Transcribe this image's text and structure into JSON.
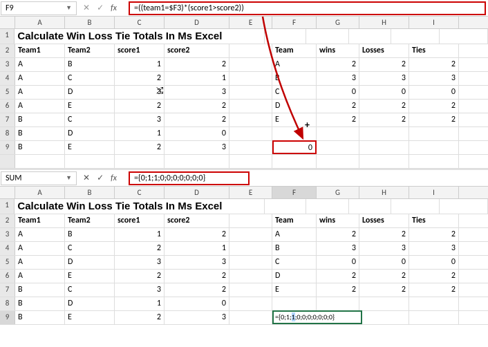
{
  "colors": {
    "highlight_border": "#c00",
    "edit_border": "#217346",
    "arrow": "#c00000"
  },
  "columns": {
    "widths": {
      "A": 72,
      "B": 72,
      "C": 72,
      "D": 94,
      "E": 62,
      "F": 64,
      "G": 62,
      "H": 72,
      "I": 72
    },
    "labels": [
      "A",
      "B",
      "C",
      "D",
      "E",
      "F",
      "G",
      "H",
      "I"
    ]
  },
  "panel1": {
    "name_box": "F9",
    "formula": "=((team1=$F3)*(score1>score2))",
    "title": "Calculate Win Loss Tie Totals In Ms Excel",
    "headers1": {
      "a": "Team1",
      "b": "Team2",
      "c": "score1",
      "d": "score2"
    },
    "headers2": {
      "f": "Team",
      "g": "wins",
      "h": "Losses",
      "i": "Ties"
    },
    "rows": [
      {
        "n": "3",
        "a": "A",
        "b": "B",
        "c": "1",
        "d": "2",
        "f": "A",
        "g": "2",
        "h": "2",
        "i": "2"
      },
      {
        "n": "4",
        "a": "A",
        "b": "C",
        "c": "2",
        "d": "1",
        "f": "B",
        "g": "3",
        "h": "3",
        "i": "3"
      },
      {
        "n": "5",
        "a": "A",
        "b": "D",
        "c": "3",
        "d": "3",
        "f": "C",
        "g": "0",
        "h": "0",
        "i": "0"
      },
      {
        "n": "6",
        "a": "A",
        "b": "E",
        "c": "2",
        "d": "2",
        "f": "D",
        "g": "2",
        "h": "2",
        "i": "2"
      },
      {
        "n": "7",
        "a": "B",
        "b": "C",
        "c": "3",
        "d": "2",
        "f": "E",
        "g": "2",
        "h": "2",
        "i": "2"
      },
      {
        "n": "8",
        "a": "B",
        "b": "D",
        "c": "1",
        "d": "0",
        "f": "",
        "g": "",
        "h": "",
        "i": ""
      },
      {
        "n": "9",
        "a": "B",
        "b": "E",
        "c": "2",
        "d": "3",
        "f": "",
        "g": "",
        "h": "",
        "i": ""
      }
    ],
    "selected_value": "0",
    "cursor_glyph": "⤭",
    "fill_glyph": "+"
  },
  "panel2": {
    "name_box": "SUM",
    "formula": "={0;1;1;0;0;0;0;0;0;0}",
    "title": "Calculate Win Loss Tie Totals In Ms Excel",
    "headers1": {
      "a": "Team1",
      "b": "Team2",
      "c": "score1",
      "d": "score2"
    },
    "headers2": {
      "f": "Team",
      "g": "wins",
      "h": "Losses",
      "i": "Ties"
    },
    "rows": [
      {
        "n": "3",
        "a": "A",
        "b": "B",
        "c": "1",
        "d": "2",
        "f": "A",
        "g": "2",
        "h": "2",
        "i": "2"
      },
      {
        "n": "4",
        "a": "A",
        "b": "C",
        "c": "2",
        "d": "1",
        "f": "B",
        "g": "3",
        "h": "3",
        "i": "3"
      },
      {
        "n": "5",
        "a": "A",
        "b": "D",
        "c": "3",
        "d": "3",
        "f": "C",
        "g": "0",
        "h": "0",
        "i": "0"
      },
      {
        "n": "6",
        "a": "A",
        "b": "E",
        "c": "2",
        "d": "2",
        "f": "D",
        "g": "2",
        "h": "2",
        "i": "2"
      },
      {
        "n": "7",
        "a": "B",
        "b": "C",
        "c": "3",
        "d": "2",
        "f": "E",
        "g": "2",
        "h": "2",
        "i": "2"
      },
      {
        "n": "8",
        "a": "B",
        "b": "D",
        "c": "1",
        "d": "0",
        "f": "",
        "g": "",
        "h": "",
        "i": ""
      },
      {
        "n": "9",
        "a": "B",
        "b": "E",
        "c": "2",
        "d": "3",
        "f": "",
        "g": "",
        "h": "",
        "i": ""
      }
    ],
    "edit_text_pre": "={0;1;",
    "edit_text_hl": "1",
    "edit_text_post": ";0;0;0;0;0;0;0}"
  }
}
